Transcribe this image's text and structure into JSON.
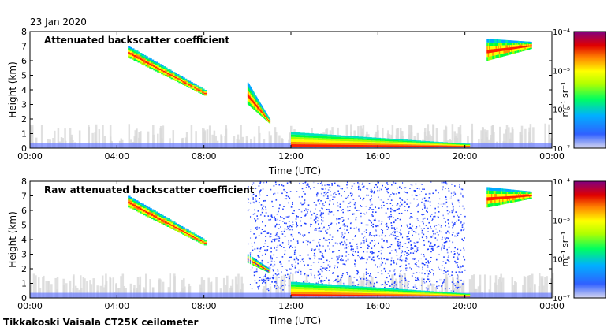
{
  "date": "23 Jan 2020",
  "footer": "Tikkakoski Vaisala CT25K ceilometer",
  "chart_data": [
    {
      "type": "heatmap",
      "title": "Attenuated backscatter coefficient",
      "xlabel": "Time (UTC)",
      "ylabel": "Height (km)",
      "xticks": [
        "00:00",
        "04:00",
        "08:00",
        "12:00",
        "16:00",
        "20:00",
        "00:00"
      ],
      "yticks": [
        "0",
        "1",
        "2",
        "3",
        "4",
        "5",
        "6",
        "7",
        "8"
      ],
      "xlim_hours": [
        0,
        24
      ],
      "ylim_km": [
        0,
        8
      ],
      "colorbar": {
        "label": "m⁻¹ sr⁻¹",
        "ticks": [
          "10⁻⁴",
          "10⁻⁵",
          "10⁻⁶",
          "10⁻⁷"
        ],
        "scale": "log",
        "range": [
          1e-07,
          0.0001
        ]
      },
      "features": [
        {
          "kind": "cloud",
          "t": [
            4.5,
            8.0
          ],
          "h_top": [
            7.0,
            4.0
          ],
          "h_bottom": [
            6.2,
            3.6
          ]
        },
        {
          "kind": "cloud",
          "t": [
            10.0,
            11.0
          ],
          "h_top": [
            4.5,
            2.0
          ],
          "h_bottom": [
            3.0,
            1.7
          ]
        },
        {
          "kind": "low-cloud",
          "t": [
            12.0,
            20.0
          ],
          "h_top": [
            1.1,
            0.3
          ],
          "h_bottom": [
            0.1,
            0.1
          ]
        },
        {
          "kind": "cloud",
          "t": [
            21.0,
            23.0
          ],
          "h_top": [
            7.5,
            7.3
          ],
          "h_bottom": [
            6.0,
            6.8
          ]
        }
      ]
    },
    {
      "type": "heatmap",
      "title": "Raw attenuated backscatter coefficient",
      "xlabel": "Time (UTC)",
      "ylabel": "Height (km)",
      "xticks": [
        "00:00",
        "04:00",
        "08:00",
        "12:00",
        "16:00",
        "20:00",
        "00:00"
      ],
      "yticks": [
        "0",
        "1",
        "2",
        "3",
        "4",
        "5",
        "6",
        "7",
        "8"
      ],
      "xlim_hours": [
        0,
        24
      ],
      "ylim_km": [
        0,
        8
      ],
      "colorbar": {
        "label": "m⁻¹ sr⁻¹",
        "ticks": [
          "10⁻⁴",
          "10⁻⁵",
          "10⁻⁶",
          "10⁻⁷"
        ],
        "scale": "log",
        "range": [
          1e-07,
          0.0001
        ]
      },
      "features": [
        {
          "kind": "cloud",
          "t": [
            4.5,
            8.0
          ],
          "h_top": [
            7.0,
            4.0
          ],
          "h_bottom": [
            6.2,
            3.6
          ]
        },
        {
          "kind": "cloud",
          "t": [
            10.0,
            11.0
          ],
          "h_top": [
            3.0,
            2.0
          ],
          "h_bottom": [
            2.4,
            1.7
          ]
        },
        {
          "kind": "noise",
          "t": [
            10.0,
            20.0
          ],
          "h_top": [
            8.0,
            8.0
          ],
          "h_bottom": [
            0.5,
            0.5
          ]
        },
        {
          "kind": "low-cloud",
          "t": [
            12.0,
            20.0
          ],
          "h_top": [
            1.1,
            0.3
          ],
          "h_bottom": [
            0.1,
            0.1
          ]
        },
        {
          "kind": "cloud",
          "t": [
            21.0,
            23.0
          ],
          "h_top": [
            7.6,
            7.3
          ],
          "h_bottom": [
            6.2,
            6.8
          ]
        }
      ]
    }
  ]
}
